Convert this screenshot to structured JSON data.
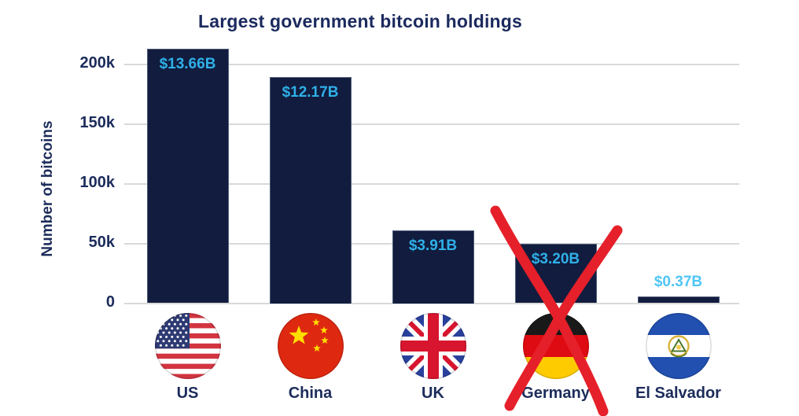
{
  "title": "Largest government bitcoin holdings",
  "y_axis": {
    "label": "Number of bitcoins",
    "ticks": [
      {
        "value": 0,
        "label": "0"
      },
      {
        "value": 50000,
        "label": "50k"
      },
      {
        "value": 100000,
        "label": "100k"
      },
      {
        "value": 150000,
        "label": "150k"
      },
      {
        "value": 200000,
        "label": "200k"
      }
    ]
  },
  "chart_data": {
    "type": "bar",
    "title": "Largest government bitcoin holdings",
    "xlabel": "",
    "ylabel": "Number of bitcoins",
    "ylim": [
      0,
      220000
    ],
    "grid": true,
    "legend": false,
    "categories": [
      "US",
      "China",
      "UK",
      "Germany",
      "El Salvador"
    ],
    "series": [
      {
        "name": "Number of bitcoins",
        "values": [
          213246,
          190000,
          61000,
          49858,
          5800
        ]
      }
    ],
    "bar_value_labels": [
      "$13.66B",
      "$12.17B",
      "$3.91B",
      "$3.20B",
      "$0.37B"
    ],
    "flags": [
      "us",
      "china",
      "uk",
      "germany",
      "el-salvador"
    ],
    "annotation": {
      "type": "hand-drawn-cross",
      "target": "Germany",
      "color": "#e5202a"
    }
  },
  "colors": {
    "bar": "#111c3e",
    "title_text": "#1b2a5e",
    "axis_text": "#1c2c5b",
    "gridline": "#d9d9d9",
    "value_label": "#2fb0e8",
    "value_label_light": "#4fc6f6",
    "cross": "#e5202a"
  }
}
